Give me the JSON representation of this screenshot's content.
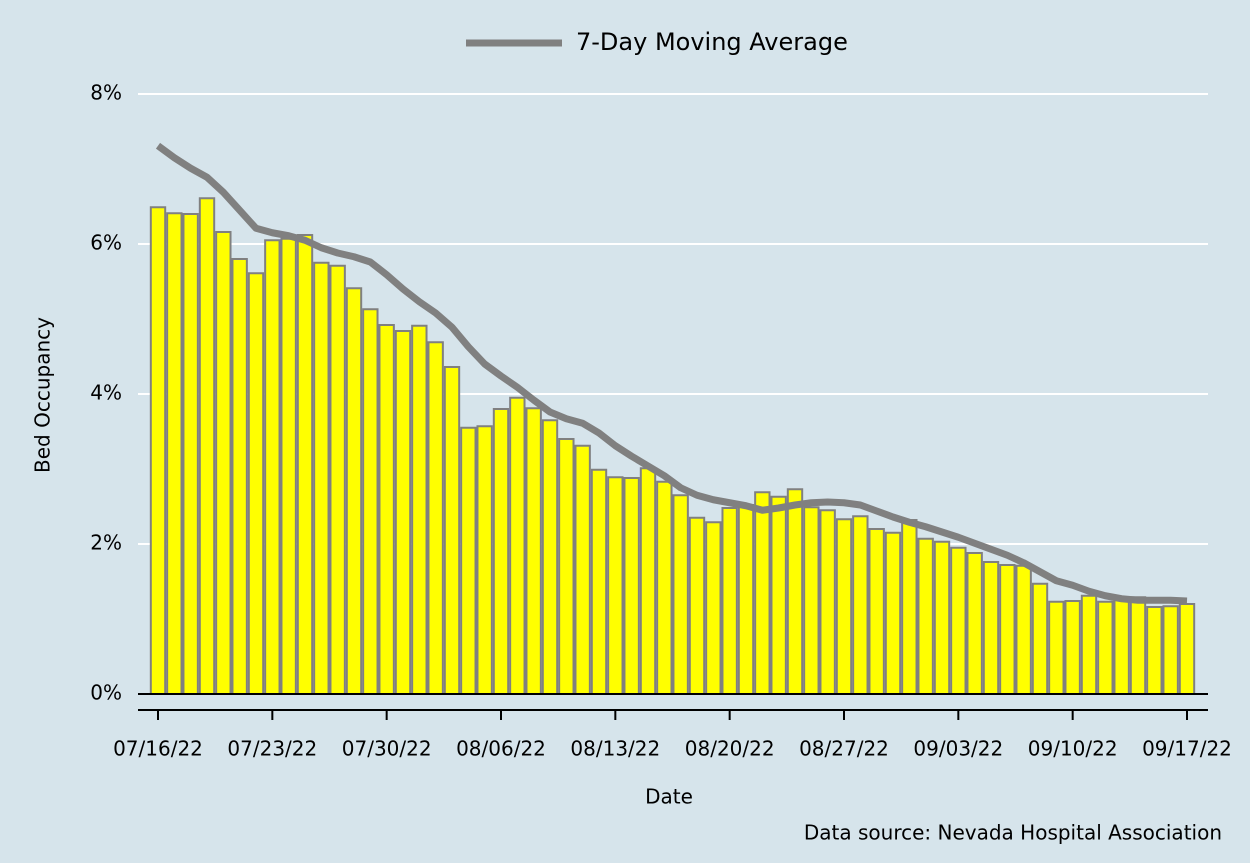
{
  "chart_data": {
    "type": "bar",
    "x_label": "Date",
    "y_label": "Bed Occupancy",
    "source": "Data source: Nevada Hospital Association",
    "categories": [
      "07/16/22",
      null,
      null,
      null,
      null,
      null,
      null,
      "07/23/22",
      null,
      null,
      null,
      null,
      null,
      null,
      "07/30/22",
      null,
      null,
      null,
      null,
      null,
      null,
      "08/06/22",
      null,
      null,
      null,
      null,
      null,
      null,
      "08/13/22",
      null,
      null,
      null,
      null,
      null,
      null,
      "08/20/22",
      null,
      null,
      null,
      null,
      null,
      null,
      "08/27/22",
      null,
      null,
      null,
      null,
      null,
      null,
      "09/03/22",
      null,
      null,
      null,
      null,
      null,
      null,
      "09/10/22",
      null,
      null,
      null,
      null,
      null,
      null,
      "09/17/22"
    ],
    "values": [
      6.49,
      6.41,
      6.4,
      6.61,
      6.16,
      5.8,
      5.61,
      6.05,
      6.07,
      6.12,
      5.75,
      5.71,
      5.41,
      5.13,
      4.92,
      4.84,
      4.91,
      4.69,
      4.36,
      3.55,
      3.57,
      3.8,
      3.95,
      3.81,
      3.65,
      3.4,
      3.31,
      2.99,
      2.89,
      2.88,
      3.01,
      2.83,
      2.65,
      2.35,
      2.29,
      2.48,
      2.52,
      2.69,
      2.63,
      2.73,
      2.49,
      2.45,
      2.33,
      2.37,
      2.2,
      2.15,
      2.32,
      2.07,
      2.03,
      1.95,
      1.88,
      1.76,
      1.72,
      1.71,
      1.47,
      1.23,
      1.24,
      1.31,
      1.23,
      1.27,
      1.29,
      1.16,
      1.17,
      1.2
    ],
    "color": "#ffff00",
    "series": [
      {
        "name": "7-Day Moving Average",
        "type": "line",
        "color": "#808080",
        "values": [
          7.31,
          7.15,
          7.01,
          6.89,
          6.69,
          6.45,
          6.21,
          6.15,
          6.11,
          6.05,
          5.95,
          5.88,
          5.83,
          5.76,
          5.59,
          5.4,
          5.23,
          5.08,
          4.89,
          4.63,
          4.4,
          4.24,
          4.09,
          3.92,
          3.76,
          3.67,
          3.61,
          3.48,
          3.31,
          3.17,
          3.04,
          2.91,
          2.75,
          2.65,
          2.59,
          2.55,
          2.51,
          2.45,
          2.48,
          2.52,
          2.55,
          2.56,
          2.55,
          2.52,
          2.44,
          2.36,
          2.29,
          2.23,
          2.16,
          2.09,
          2.01,
          1.93,
          1.85,
          1.75,
          1.63,
          1.51,
          1.45,
          1.37,
          1.31,
          1.27,
          1.25,
          1.25,
          1.25,
          1.24
        ]
      }
    ],
    "ylim": [
      0,
      8
    ],
    "yticks": [
      {
        "value": 0,
        "label": "0%"
      },
      {
        "value": 2,
        "label": "2%"
      },
      {
        "value": 4,
        "label": "4%"
      },
      {
        "value": 6,
        "label": "6%"
      },
      {
        "value": 8,
        "label": "8%"
      }
    ],
    "grid": true,
    "legend": "top"
  }
}
